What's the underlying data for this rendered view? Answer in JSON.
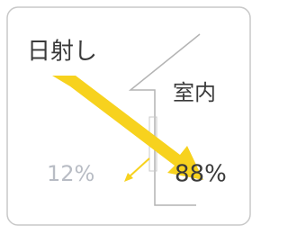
{
  "labels": {
    "sunlight": "日射し",
    "indoor": "室内",
    "reflected": "12%",
    "transmitted": "88%"
  }
}
